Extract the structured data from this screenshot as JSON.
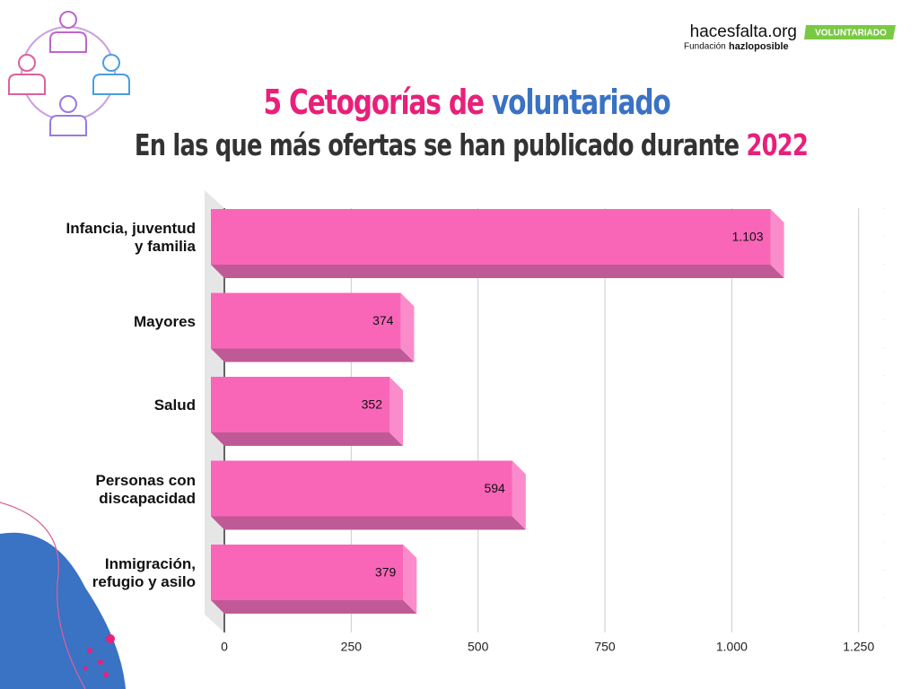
{
  "brand": {
    "site": "hacesfalta.org",
    "foundation": "Fundación",
    "foundation_name": "hazloposible",
    "badge": "VOLUNTARIADO"
  },
  "chart_data": {
    "type": "hbar3d",
    "title": [
      "5 Cetogorías de",
      "voluntariado"
    ],
    "subtitle": [
      "En las que más ofertas se han publicado durante",
      "2022"
    ],
    "categories": [
      "Infancia, juventud\ny familia",
      "Mayores",
      "Salud",
      "Personas con\ndiscapacidad",
      "Inmigración,\nrefugio y asilo"
    ],
    "values": [
      1103,
      374,
      352,
      594,
      379
    ],
    "value_labels": [
      "1.103",
      "374",
      "352",
      "594",
      "379"
    ],
    "color": "#f966b8",
    "xlim": [
      0,
      1300
    ],
    "xticks": [
      0,
      250,
      500,
      750,
      {
        "value": 1000,
        "label": "1.000"
      },
      {
        "value": 1250,
        "label": "1.250"
      }
    ],
    "grid": true
  }
}
